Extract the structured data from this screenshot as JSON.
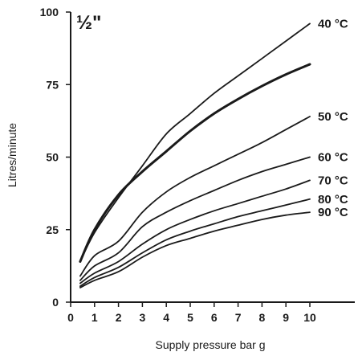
{
  "chart_data": {
    "type": "line",
    "corner_label": "½\"",
    "xlabel": "Supply pressure bar g",
    "ylabel": "Litres/minute",
    "xlim": [
      0,
      10.5
    ],
    "ylim": [
      0,
      100
    ],
    "x_ticks": [
      0,
      1,
      2,
      3,
      4,
      5,
      6,
      7,
      8,
      9,
      10
    ],
    "y_ticks": [
      0,
      25,
      50,
      75,
      100
    ],
    "grid": false,
    "series": [
      {
        "name": "40 °C",
        "x": [
          0.4,
          1,
          2,
          3,
          4,
          5,
          6,
          7,
          8,
          9,
          10
        ],
        "y": [
          14,
          24,
          36,
          47,
          58,
          65,
          72,
          78,
          84,
          90,
          96
        ],
        "bold": false
      },
      {
        "name": "",
        "x": [
          0.4,
          1,
          2,
          3,
          4,
          5,
          6,
          7,
          8,
          9,
          10
        ],
        "y": [
          14,
          25,
          37,
          45,
          52,
          59,
          65,
          70,
          74.5,
          78.5,
          82
        ],
        "bold": true
      },
      {
        "name": "50 °C",
        "x": [
          0.4,
          1,
          2,
          3,
          4,
          5,
          6,
          7,
          8,
          9,
          10
        ],
        "y": [
          9,
          16,
          21,
          31,
          38,
          43,
          47,
          51,
          55,
          59.5,
          64
        ],
        "bold": false
      },
      {
        "name": "60 °C",
        "x": [
          0.4,
          1,
          2,
          3,
          4,
          5,
          6,
          7,
          8,
          9,
          10
        ],
        "y": [
          7.5,
          12.5,
          17,
          26,
          31,
          35,
          38.5,
          42,
          45,
          47.5,
          50
        ],
        "bold": false
      },
      {
        "name": "70 °C",
        "x": [
          0.4,
          1,
          2,
          3,
          4,
          5,
          6,
          7,
          8,
          9,
          10
        ],
        "y": [
          6.5,
          10,
          14,
          20,
          25,
          28.5,
          31.5,
          34,
          36.5,
          39,
          42
        ],
        "bold": false
      },
      {
        "name": "80 °C",
        "x": [
          0.4,
          1,
          2,
          3,
          4,
          5,
          6,
          7,
          8,
          9,
          10
        ],
        "y": [
          5.5,
          8.5,
          12,
          17,
          21.5,
          24.5,
          27,
          29.5,
          31.5,
          33.5,
          35.5
        ],
        "bold": false
      },
      {
        "name": "90 °C",
        "x": [
          0.4,
          1,
          2,
          3,
          4,
          5,
          6,
          7,
          8,
          9,
          10
        ],
        "y": [
          5,
          7.5,
          10.5,
          15.5,
          19.5,
          22,
          24.5,
          26.5,
          28.5,
          30,
          31
        ],
        "bold": false
      }
    ]
  }
}
